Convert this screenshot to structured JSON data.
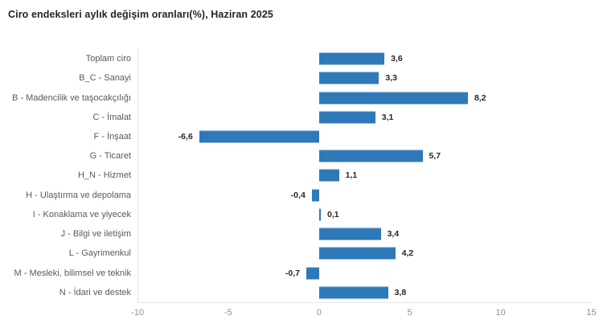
{
  "title": "Ciro endeksleri aylık değişim oranları(%), Haziran 2025",
  "colors": {
    "bar": "#2e79b8",
    "bar_highlight": "#4a8cc4",
    "title_text": "#21242e",
    "category_text": "#595959",
    "value_text": "#262626",
    "tick_text": "#8a8f98",
    "axis_line": "#e3e3e3",
    "background": "#ffffff"
  },
  "chart_data": {
    "type": "bar",
    "orientation": "horizontal",
    "title": "Ciro endeksleri aylık değişim oranları(%), Haziran 2025",
    "categories": [
      "Toplam ciro",
      "B_C - Sanayi",
      "B - Madencilik ve taşocakçılığı",
      "C - İmalat",
      "F - İnşaat",
      "G - Ticaret",
      "H_N - Hizmet",
      "H - Ulaştırma ve depolama",
      "I - Konaklama ve yiyecek",
      "J - Bilgi ve iletişim",
      "L - Gayrimenkul",
      "M - Mesleki, bilimsel ve teknik",
      "N - İdari ve destek"
    ],
    "values": [
      3.6,
      3.3,
      8.2,
      3.1,
      -6.6,
      5.7,
      1.1,
      -0.4,
      0.1,
      3.4,
      4.2,
      -0.7,
      3.8
    ],
    "value_labels": [
      "3,6",
      "3,3",
      "8,2",
      "3,1",
      "-6,6",
      "5,7",
      "1,1",
      "-0,4",
      "0,1",
      "3,4",
      "4,2",
      "-0,7",
      "3,8"
    ],
    "xlabel": "",
    "ylabel": "",
    "xlim": [
      -10,
      15
    ],
    "x_tick_values": [
      -10,
      -5,
      0,
      5,
      10,
      15
    ],
    "x_tick_labels": [
      "-10",
      "-5",
      "0",
      "5",
      "10",
      "15"
    ],
    "grid": false,
    "legend_position": "none",
    "value_label_position": "outside-end",
    "decimal_separator": ","
  }
}
